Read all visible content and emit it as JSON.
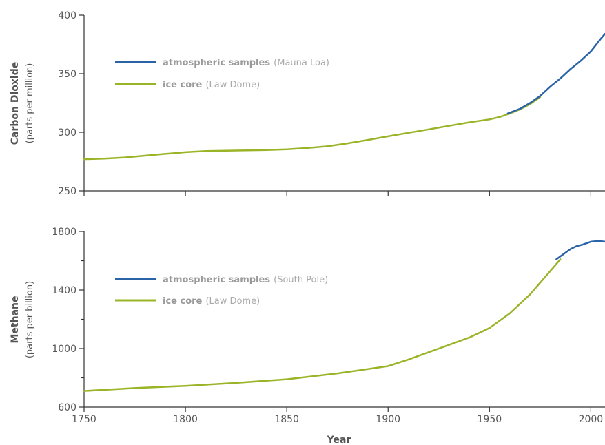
{
  "colors": {
    "atmospheric": "#2a63a6",
    "ice_core": "#9ab428"
  },
  "chart_data": [
    {
      "type": "line",
      "ylabel": "Carbon Dioxide",
      "ylabel_sub": "(parts per million)",
      "xlim": [
        1750,
        2007
      ],
      "ylim": [
        250,
        400
      ],
      "yticks": [
        250,
        300,
        350,
        400
      ],
      "minor_yticks": [],
      "legend": "upper-left",
      "series": [
        {
          "name": "atmospheric samples",
          "source": "(Mauna Loa)",
          "color_key": "atmospheric",
          "x": [
            1959,
            1965,
            1970,
            1975,
            1980,
            1985,
            1990,
            1995,
            2000,
            2005,
            2007
          ],
          "y": [
            316,
            320,
            325,
            331,
            339,
            346,
            354,
            361,
            369,
            380,
            384
          ]
        },
        {
          "name": "ice core",
          "source": "(Law Dome)",
          "color_key": "ice_core",
          "x": [
            1750,
            1760,
            1770,
            1780,
            1790,
            1800,
            1810,
            1820,
            1830,
            1840,
            1850,
            1860,
            1870,
            1880,
            1890,
            1900,
            1910,
            1920,
            1930,
            1940,
            1950,
            1955,
            1960,
            1965,
            1970,
            1975
          ],
          "y": [
            277,
            277.5,
            278.5,
            280,
            281.5,
            283,
            284,
            284.3,
            284.5,
            284.8,
            285.5,
            286.5,
            288,
            290.5,
            293.5,
            296.5,
            299.5,
            302.5,
            305.5,
            308.5,
            311,
            313,
            316,
            319.5,
            324,
            330
          ]
        }
      ]
    },
    {
      "type": "line",
      "ylabel": "Methane",
      "ylabel_sub": "(parts per billion)",
      "xlabel": "Year",
      "xlim": [
        1750,
        2007
      ],
      "ylim": [
        600,
        1800
      ],
      "yticks": [
        600,
        1000,
        1400,
        1800
      ],
      "minor_yticks": [
        800,
        1200,
        1600
      ],
      "xticks": [
        1750,
        1800,
        1850,
        1900,
        1950,
        2000
      ],
      "legend": "upper-left",
      "series": [
        {
          "name": "atmospheric samples",
          "source": "(South Pole)",
          "color_key": "atmospheric",
          "x": [
            1983,
            1986,
            1990,
            1993,
            1996,
            2000,
            2004,
            2007
          ],
          "y": [
            1610,
            1640,
            1680,
            1700,
            1710,
            1730,
            1735,
            1730
          ]
        },
        {
          "name": "ice core",
          "source": "(Law Dome)",
          "color_key": "ice_core",
          "x": [
            1750,
            1775,
            1800,
            1825,
            1850,
            1875,
            1900,
            1910,
            1920,
            1930,
            1940,
            1950,
            1960,
            1970,
            1980,
            1985
          ],
          "y": [
            710,
            730,
            745,
            765,
            790,
            830,
            880,
            925,
            975,
            1025,
            1075,
            1140,
            1240,
            1370,
            1530,
            1610
          ]
        }
      ]
    }
  ]
}
